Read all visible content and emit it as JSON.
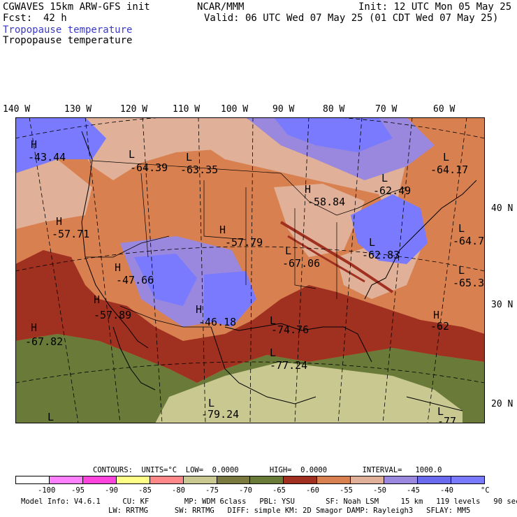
{
  "header": {
    "model_title": "CGWAVES 15km ARW-GFS init",
    "forecast_label": "Fcst:",
    "forecast_hours": "42 h",
    "center": "NCAR/MMM",
    "init": "Init: 12 UTC Mon 05 May 25",
    "valid": "Valid: 06 UTC Wed 07 May 25 (01 CDT Wed 07 May 25)",
    "field_title_1": "Tropopause temperature",
    "field_title_2": "Tropopause temperature"
  },
  "longitude_labels": [
    "140 W",
    "130 W",
    "120 W",
    "110 W",
    "100 W",
    "90 W",
    "80 W",
    "70 W",
    "60 W"
  ],
  "latitude_labels": [
    "40 N",
    "30 N",
    "20 N"
  ],
  "map_annotations": [
    {
      "type": "H",
      "value": "-43.44"
    },
    {
      "type": "L",
      "value": "-64.39"
    },
    {
      "type": "L",
      "value": "-63.35"
    },
    {
      "type": "L",
      "value": "-62.49"
    },
    {
      "type": "L",
      "value": "-64.17"
    },
    {
      "type": "H",
      "value": "-58.84"
    },
    {
      "type": "H",
      "value": "-57.71"
    },
    {
      "type": "H",
      "value": "-57.79"
    },
    {
      "type": "L",
      "value": "-67.06"
    },
    {
      "type": "L",
      "value": "-62.83"
    },
    {
      "type": "L",
      "value": "-64.7"
    },
    {
      "type": "L",
      "value": "-65.3"
    },
    {
      "type": "H",
      "value": "-47.66"
    },
    {
      "type": "H",
      "value": "-46.18"
    },
    {
      "type": "H",
      "value": "-57.89"
    },
    {
      "type": "L",
      "value": "-74.76"
    },
    {
      "type": "H",
      "value": "-62"
    },
    {
      "type": "H",
      "value": "-67.82"
    },
    {
      "type": "L",
      "value": "-77.24"
    },
    {
      "type": "L",
      "value": "-79.24"
    },
    {
      "type": "L",
      "value": ""
    },
    {
      "type": "L",
      "value": "-77"
    }
  ],
  "contours": {
    "text": "CONTOURS:  UNITS=°C  LOW=  0.0000       HIGH=  0.0000        INTERVAL=   1000.0"
  },
  "colorbar": {
    "colors": [
      "#ffffff",
      "#ff80ff",
      "#ff44dd",
      "#ffff88",
      "#ff8888",
      "#c8c890",
      "#7a7a40",
      "#6a7a38",
      "#a03020",
      "#d88050",
      "#e0b098",
      "#9988dd",
      "#6a6aee",
      "#7a7aff"
    ],
    "labels": [
      "-100",
      "-95",
      "-90",
      "-85",
      "-80",
      "-75",
      "-70",
      "-65",
      "-60",
      "-55",
      "-50",
      "-45",
      "-40"
    ],
    "unit": "°C"
  },
  "footer": {
    "line1": "Model Info: V4.6.1     CU: KF        MP: WDM 6class   PBL: YSU       SF: Noah LSM     15 km   119 levels   90 sec",
    "line2": "LW: RRTMG      SW: RRTMG   DIFF: simple KM: 2D Smagor DAMP: Rayleigh3   SFLAY: MM5"
  }
}
